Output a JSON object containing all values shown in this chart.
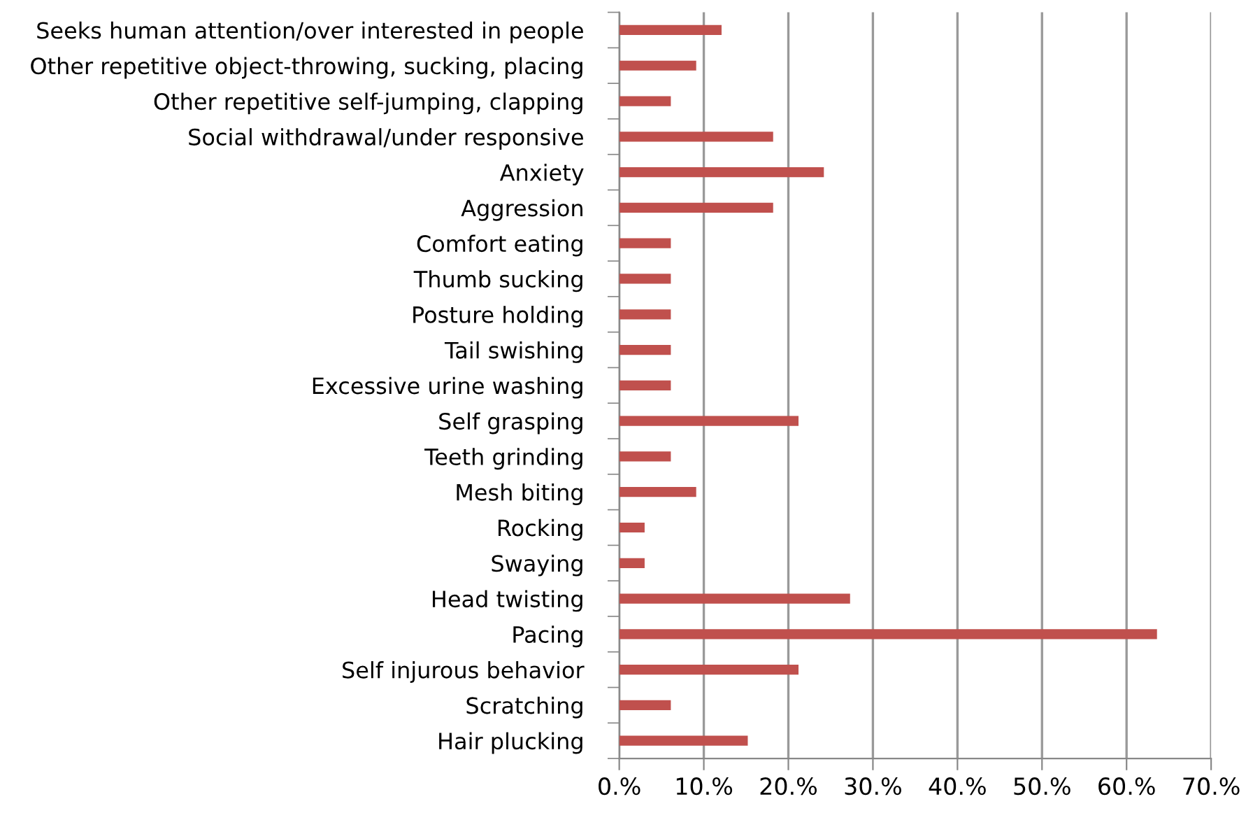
{
  "chart_data": {
    "type": "bar",
    "orientation": "horizontal",
    "categories": [
      "Seeks human attention/over interested in people",
      "Other repetitive object-throwing, sucking, placing",
      "Other repetitive self-jumping, clapping",
      "Social withdrawal/under responsive",
      "Anxiety",
      "Aggression",
      "Comfort eating",
      "Thumb sucking",
      "Posture holding",
      "Tail swishing",
      "Excessive urine washing",
      "Self grasping",
      "Teeth grinding",
      "Mesh biting",
      "Rocking",
      "Swaying",
      "Head twisting",
      "Pacing",
      "Self injurous behavior",
      "Scratching",
      "Hair plucking"
    ],
    "values": [
      12.1,
      9.1,
      6.1,
      18.2,
      24.2,
      18.2,
      6.1,
      6.1,
      6.1,
      6.1,
      6.1,
      21.2,
      6.1,
      9.1,
      3.0,
      3.0,
      27.3,
      63.6,
      21.2,
      6.1,
      15.2
    ],
    "color": "#c0504d",
    "xlim": [
      0,
      70
    ],
    "xticks": [
      {
        "value": 0,
        "label": "0.%"
      },
      {
        "value": 10,
        "label": "10.%"
      },
      {
        "value": 20,
        "label": "20.%"
      },
      {
        "value": 30,
        "label": "30.%"
      },
      {
        "value": 40,
        "label": "40.%"
      },
      {
        "value": 50,
        "label": "50.%"
      },
      {
        "value": 60,
        "label": "60.%"
      },
      {
        "value": 70,
        "label": "70.%"
      }
    ],
    "grid": "x"
  }
}
